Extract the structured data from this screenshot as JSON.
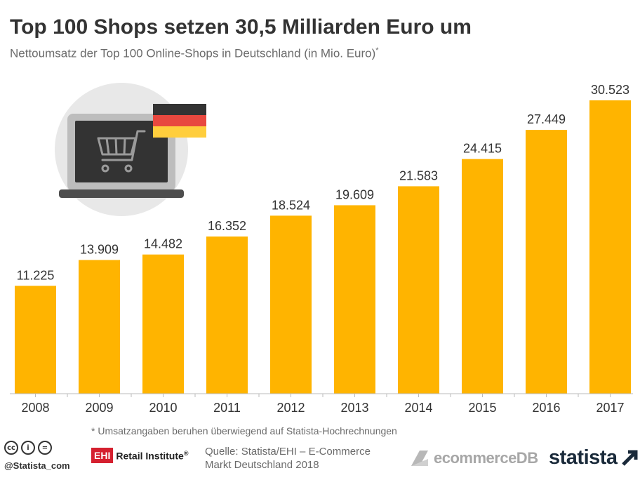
{
  "header": {
    "title": "Top 100 Shops setzen 30,5 Milliarden Euro um",
    "subtitle": "Nettoumsatz der Top 100 Online-Shops in Deutschland (in Mio. Euro)",
    "subtitle_mark": "*"
  },
  "chart_data": {
    "type": "bar",
    "categories": [
      "2008",
      "2009",
      "2010",
      "2011",
      "2012",
      "2013",
      "2014",
      "2015",
      "2016",
      "2017"
    ],
    "values": [
      11225,
      13909,
      14482,
      16352,
      18524,
      19609,
      21583,
      24415,
      27449,
      30523
    ],
    "value_labels": [
      "11.225",
      "13.909",
      "14.482",
      "16.352",
      "18.524",
      "19.609",
      "21.583",
      "24.415",
      "27.449",
      "30.523"
    ],
    "ylim": [
      0,
      30523
    ],
    "grid": false,
    "bar_color": "#FFB400"
  },
  "illustration": {
    "icons": [
      "laptop-icon",
      "shopping-cart-icon",
      "german-flag-icon"
    ],
    "flag_colors": [
      "#333333",
      "#E8483F",
      "#FFCE3D"
    ]
  },
  "footnote": "* Umsatzangaben beruhen überwiegend auf Statista-Hochrechnungen",
  "footer": {
    "license_icons": [
      "cc",
      "by",
      "nd"
    ],
    "license_glyphs": [
      "cc",
      "i",
      "="
    ],
    "handle": "@Statista_com",
    "ehi_box": "EHI",
    "ehi_text": "Retail Institute",
    "ehi_mark": "®",
    "source_line1": "Quelle: Statista/EHI – E-Commerce",
    "source_line2": "Markt Deutschland 2018",
    "ecommercedb": "ecommerceDB",
    "statista": "statista"
  }
}
